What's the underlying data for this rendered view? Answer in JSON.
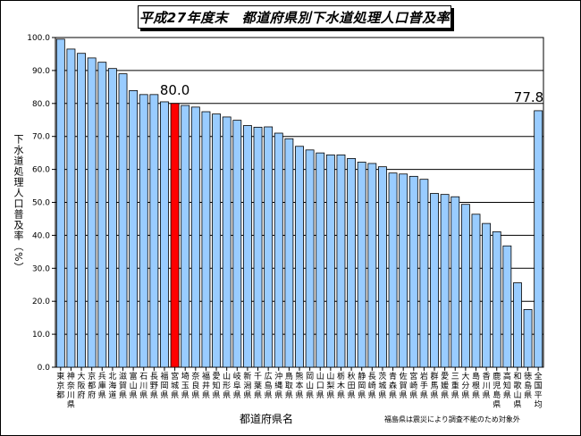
{
  "title": "平成27年度末　都道府県別下水道処理人口普及率",
  "note": "福島県は震災により調査不能のため対象外",
  "chart_data": {
    "type": "bar",
    "xlabel": "都道府県名",
    "ylabel": "下水道処理人口普及率（%）",
    "ylim": [
      0,
      100
    ],
    "yticks": [
      "0.0",
      "10.0",
      "20.0",
      "30.0",
      "40.0",
      "50.0",
      "60.0",
      "70.0",
      "80.0",
      "90.0",
      "100.0"
    ],
    "grid": true,
    "categories": [
      "東京都",
      "神奈川県",
      "大阪府",
      "京都府",
      "兵庫県",
      "北海道",
      "滋賀県",
      "富山県",
      "石川県",
      "長野県",
      "福岡県",
      "宮城県",
      "埼玉県",
      "奈良県",
      "福井県",
      "愛知県",
      "山形県",
      "岐阜県",
      "新潟県",
      "千葉県",
      "広島県",
      "沖縄県",
      "鳥取県",
      "熊本県",
      "岡山県",
      "山口県",
      "山梨県",
      "栃木県",
      "秋田県",
      "静岡県",
      "長崎県",
      "茨城県",
      "青森県",
      "佐賀県",
      "宮崎県",
      "岩手県",
      "群馬県",
      "愛媛県",
      "三重県",
      "大分県",
      "島根県",
      "香川県",
      "鹿児島県",
      "高知県",
      "和歌山県",
      "徳島県",
      "全国平均"
    ],
    "values": [
      99.5,
      96.5,
      95.2,
      93.8,
      92.5,
      90.6,
      89.0,
      83.9,
      82.7,
      82.7,
      80.5,
      80.0,
      79.4,
      78.9,
      77.5,
      76.8,
      75.9,
      74.9,
      73.3,
      72.8,
      72.9,
      71.0,
      69.3,
      67.0,
      65.9,
      65.0,
      64.4,
      64.4,
      63.3,
      62.2,
      61.8,
      60.8,
      58.9,
      58.6,
      57.9,
      57.0,
      52.7,
      52.4,
      51.7,
      49.4,
      46.4,
      43.6,
      41.1,
      36.8,
      25.6,
      17.5,
      77.8
    ],
    "highlight": {
      "category": "宮城県",
      "color": "#ff0000",
      "label": "80.0"
    },
    "average": {
      "category": "全国平均",
      "label": "77.8"
    },
    "colors": {
      "bar": "#99ccff",
      "highlight": "#ff0000",
      "grid": "#000000"
    }
  }
}
